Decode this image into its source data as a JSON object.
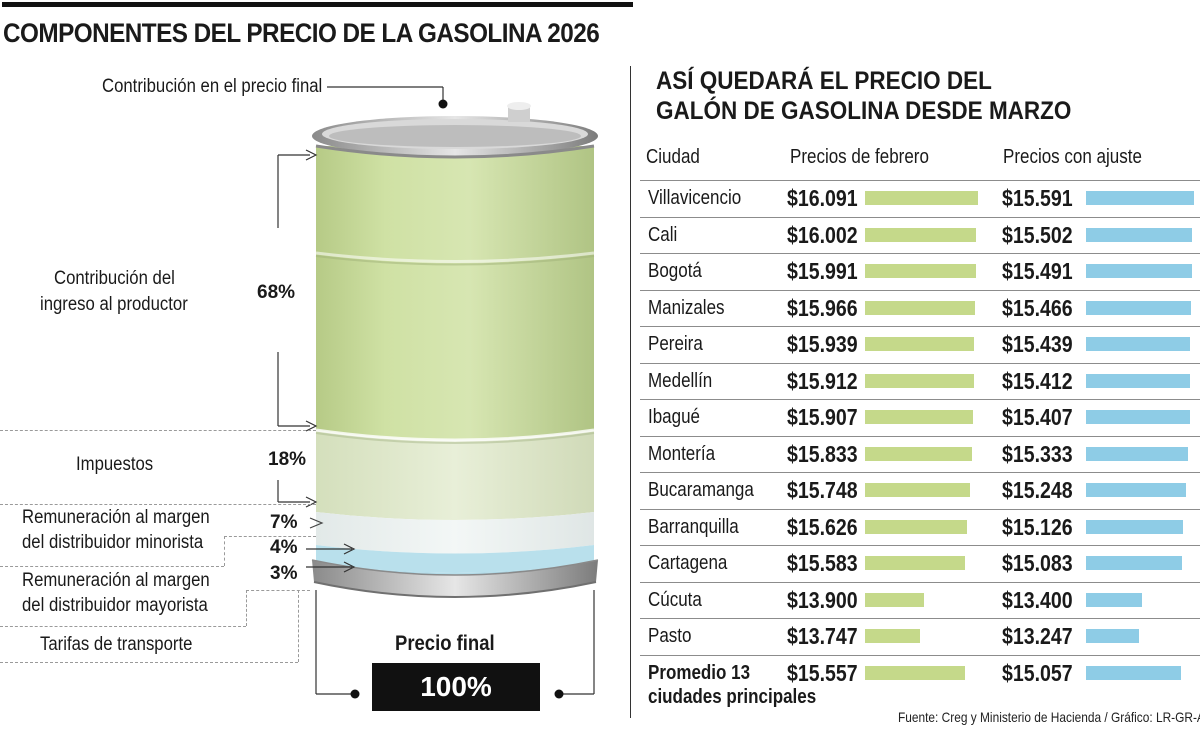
{
  "title": "COMPONENTES DEL PRECIO DE LA GASOLINA  2026",
  "left": {
    "top_label": "Contribución en el precio final",
    "components": [
      {
        "label_lines": [
          "Contribución del",
          "ingreso al productor"
        ],
        "percent": "68%"
      },
      {
        "label_lines": [
          "Impuestos"
        ],
        "percent": "18%"
      },
      {
        "label_lines": [
          "Remuneración al margen",
          "del distribuidor minorista"
        ],
        "percent": "7%"
      },
      {
        "label_lines": [
          "Remuneración al margen",
          "del distribuidor mayorista"
        ],
        "percent": "4%"
      },
      {
        "label_lines": [
          "Tarifas de transporte"
        ],
        "percent": "3%"
      }
    ],
    "final_label": "Precio final",
    "final_value": "100%"
  },
  "right": {
    "title_lines": [
      "ASÍ QUEDARÁ EL PRECIO DEL",
      "GALÓN DE GASOLINA DESDE MARZO"
    ],
    "headers": {
      "city": "Ciudad",
      "feb": "Precios de febrero",
      "adj": "Precios con ajuste"
    },
    "rows": [
      {
        "city": "Villavicencio",
        "feb": "$16.091",
        "adj": "$15.591"
      },
      {
        "city": "Cali",
        "feb": "$16.002",
        "adj": "$15.502"
      },
      {
        "city": "Bogotá",
        "feb": "$15.991",
        "adj": "$15.491"
      },
      {
        "city": "Manizales",
        "feb": "$15.966",
        "adj": "$15.466"
      },
      {
        "city": "Pereira",
        "feb": "$15.939",
        "adj": "$15.439"
      },
      {
        "city": "Medellín",
        "feb": "$15.912",
        "adj": "$15.412"
      },
      {
        "city": "Ibagué",
        "feb": "$15.907",
        "adj": "$15.407"
      },
      {
        "city": "Montería",
        "feb": "$15.833",
        "adj": "$15.333"
      },
      {
        "city": "Bucaramanga",
        "feb": "$15.748",
        "adj": "$15.248"
      },
      {
        "city": "Barranquilla",
        "feb": "$15.626",
        "adj": "$15.126"
      },
      {
        "city": "Cartagena",
        "feb": "$15.583",
        "adj": "$15.083"
      },
      {
        "city": "Cúcuta",
        "feb": "$13.900",
        "adj": "$13.400"
      },
      {
        "city": "Pasto",
        "feb": "$13.747",
        "adj": "$13.247"
      }
    ],
    "average": {
      "city_lines": [
        "Promedio 13",
        "ciudades principales"
      ],
      "feb": "$15.557",
      "adj": "$15.057"
    },
    "source": "Fuente: Creg y Ministerio de Hacienda / Gráfico: LR-GR-AA"
  },
  "colors": {
    "feb_bar": "#c5d98a",
    "adj_bar": "#8ecce6",
    "barrel_green": "#c8dc9c",
    "barrel_light": "#e4ecd2",
    "barrel_white": "#eef3f3",
    "barrel_blue": "#a9d6e6"
  },
  "chart_data": [
    {
      "type": "bar",
      "title": "ASÍ QUEDARÁ EL PRECIO DEL GALÓN DE GASOLINA DESDE MARZO",
      "categories": [
        "Villavicencio",
        "Cali",
        "Bogotá",
        "Manizales",
        "Pereira",
        "Medellín",
        "Ibagué",
        "Montería",
        "Bucaramanga",
        "Barranquilla",
        "Cartagena",
        "Cúcuta",
        "Pasto",
        "Promedio 13 ciudades principales"
      ],
      "series": [
        {
          "name": "Precios de febrero",
          "values": [
            16091,
            16002,
            15991,
            15966,
            15939,
            15912,
            15907,
            15833,
            15748,
            15626,
            15583,
            13900,
            13747,
            15557
          ]
        },
        {
          "name": "Precios con ajuste",
          "values": [
            15591,
            15502,
            15491,
            15466,
            15439,
            15412,
            15407,
            15333,
            15248,
            15126,
            15083,
            13400,
            13247,
            15057
          ]
        }
      ]
    },
    {
      "type": "bar",
      "title": "COMPONENTES DEL PRECIO DE LA GASOLINA  2026",
      "categories": [
        "Contribución del ingreso al productor",
        "Impuestos",
        "Remuneración al margen del distribuidor minorista",
        "Remuneración al margen del distribuidor mayorista",
        "Tarifas de transporte"
      ],
      "values": [
        68,
        18,
        7,
        4,
        3
      ]
    }
  ]
}
